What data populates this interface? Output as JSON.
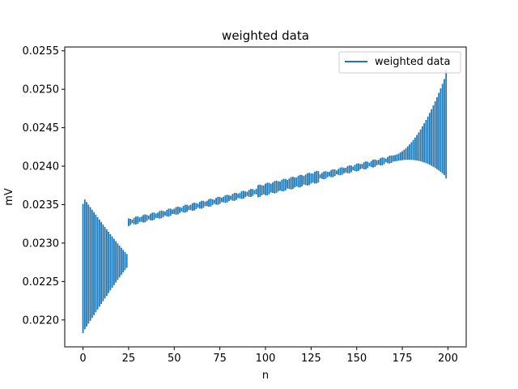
{
  "chart_data": {
    "type": "bar",
    "title": "weighted data",
    "xlabel": "n",
    "ylabel": "mV",
    "xlim": [
      -10,
      210
    ],
    "ylim": [
      0.02165,
      0.02555
    ],
    "xticks": [
      0,
      25,
      50,
      75,
      100,
      125,
      150,
      175,
      200
    ],
    "yticks": [
      0.022,
      0.0225,
      0.023,
      0.0235,
      0.024,
      0.0245,
      0.025,
      0.0255
    ],
    "xtick_labels": [
      "0",
      "25",
      "50",
      "75",
      "100",
      "125",
      "150",
      "175",
      "200"
    ],
    "ytick_labels": [
      "0.0220",
      "0.0225",
      "0.0230",
      "0.0235",
      "0.0240",
      "0.0245",
      "0.0250",
      "0.0255"
    ],
    "legend": {
      "location": "upper right",
      "entries": [
        "weighted data"
      ]
    },
    "grid": false,
    "series": [
      {
        "name": "weighted data",
        "color": "#1f77b4",
        "x": [
          0,
          200
        ],
        "y_low": [
          0.02183,
          0.02384
        ],
        "y_high": [
          0.02351,
          0.02525
        ],
        "n_points": 200
      }
    ]
  }
}
